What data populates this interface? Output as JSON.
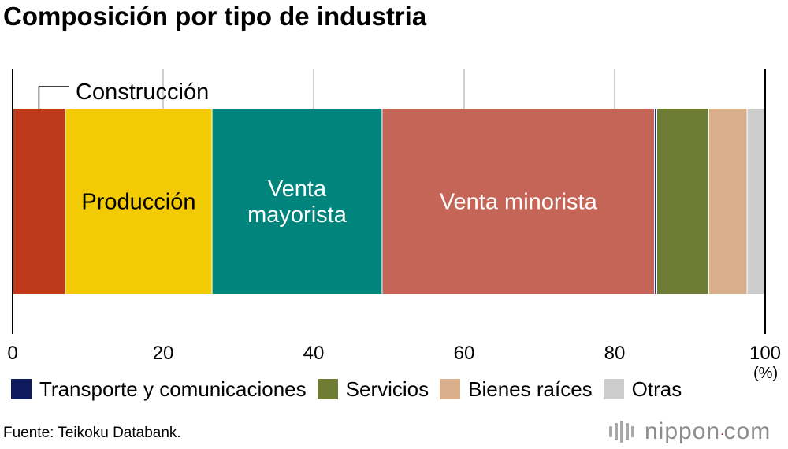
{
  "title": "Composición por tipo de industria",
  "unit": "(%)",
  "source": "Fuente: Teikoku Databank.",
  "brand": {
    "name": "nippon",
    "dot": ".",
    "tld": "com",
    "accent": "#c8102e"
  },
  "chart_data": {
    "type": "bar",
    "orientation": "horizontal-stacked",
    "xlim": [
      0,
      100
    ],
    "xticks": [
      "0",
      "20",
      "40",
      "60",
      "80",
      "100"
    ],
    "grid": true,
    "series": [
      {
        "name": "Construcción",
        "value": 7.0,
        "color": "#bf3a1a",
        "label": "Construcción",
        "label_position": "outside-above"
      },
      {
        "name": "Producción",
        "value": 19.5,
        "color": "#f2cb05",
        "label": "Producción",
        "label_position": "inside"
      },
      {
        "name": "Venta mayorista",
        "value": 22.6,
        "color": "#00847c",
        "label": "Venta\nmayorista",
        "label_position": "inside"
      },
      {
        "name": "Venta minorista",
        "value": 36.2,
        "color": "#c46558",
        "label": "Venta minorista",
        "label_position": "inside"
      },
      {
        "name": "Transporte y comunicaciones",
        "value": 0.3,
        "color": "#0d1a5c",
        "label": "",
        "label_position": "legend"
      },
      {
        "name": "Servicios",
        "value": 6.9,
        "color": "#6e7d33",
        "label": "",
        "label_position": "legend"
      },
      {
        "name": "Bienes raíces",
        "value": 5.1,
        "color": "#d9ae8b",
        "label": "",
        "label_position": "legend"
      },
      {
        "name": "Otras",
        "value": 2.4,
        "color": "#cccccc",
        "label": "",
        "label_position": "legend"
      }
    ],
    "legend": [
      {
        "label": "Transporte y comunicaciones",
        "color": "#0d1a5c"
      },
      {
        "label": "Servicios",
        "color": "#6e7d33"
      },
      {
        "label": "Bienes raíces",
        "color": "#d9ae8b"
      },
      {
        "label": "Otras",
        "color": "#cccccc"
      }
    ]
  }
}
